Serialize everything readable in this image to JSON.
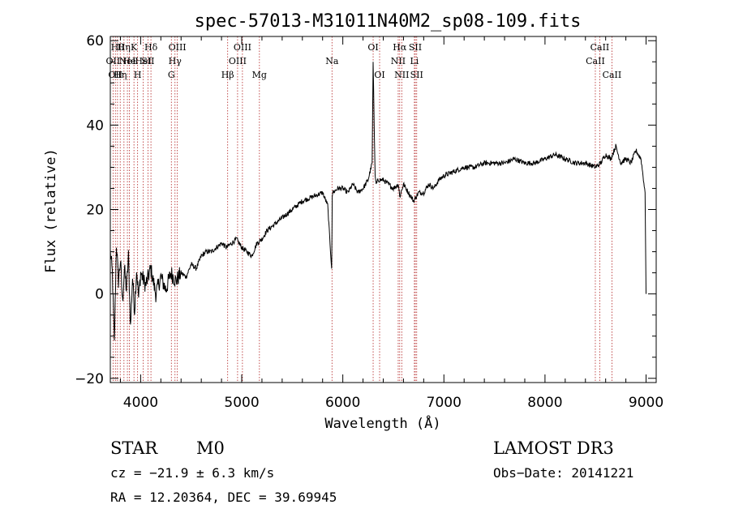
{
  "chart_data": {
    "type": "line",
    "title": "spec-57013-M31011N40M2_sp08-109.fits",
    "xlabel": "Wavelength (Å)",
    "ylabel": "Flux (relative)",
    "xlim": [
      3700,
      9100
    ],
    "ylim": [
      -21,
      61
    ],
    "xticks": [
      {
        "value": 4000,
        "label": "4000"
      },
      {
        "value": 5000,
        "label": "5000"
      },
      {
        "value": 6000,
        "label": "6000"
      },
      {
        "value": 7000,
        "label": "7000"
      },
      {
        "value": 8000,
        "label": "8000"
      },
      {
        "value": 9000,
        "label": "9000"
      }
    ],
    "yticks": [
      {
        "value": 60,
        "label": "60"
      },
      {
        "value": 40,
        "label": "40"
      },
      {
        "value": 20,
        "label": "20"
      },
      {
        "value": 0,
        "label": "0"
      },
      {
        "value": -20,
        "label": "−20"
      }
    ],
    "series": [
      {
        "name": "flux",
        "x": [
          3700,
          3720,
          3740,
          3760,
          3780,
          3800,
          3820,
          3840,
          3860,
          3880,
          3900,
          3920,
          3940,
          3960,
          3980,
          4000,
          4050,
          4100,
          4150,
          4200,
          4250,
          4300,
          4350,
          4400,
          4450,
          4500,
          4550,
          4600,
          4650,
          4700,
          4750,
          4800,
          4850,
          4900,
          4950,
          5000,
          5050,
          5100,
          5150,
          5200,
          5250,
          5300,
          5400,
          5500,
          5600,
          5700,
          5800,
          5850,
          5890,
          5895,
          5900,
          5950,
          6000,
          6050,
          6100,
          6150,
          6200,
          6250,
          6290,
          6300,
          6310,
          6320,
          6330,
          6350,
          6400,
          6450,
          6500,
          6550,
          6563,
          6600,
          6650,
          6700,
          6750,
          6800,
          6850,
          6900,
          6950,
          7000,
          7100,
          7200,
          7300,
          7400,
          7500,
          7600,
          7700,
          7800,
          7900,
          8000,
          8100,
          8200,
          8300,
          8400,
          8500,
          8550,
          8600,
          8650,
          8700,
          8750,
          8800,
          8850,
          8900,
          8950,
          8990,
          9000
        ],
        "y": [
          10,
          5,
          -12,
          12,
          3,
          8,
          -2,
          6,
          1,
          9,
          -8,
          4,
          -4,
          6,
          -1,
          5,
          2,
          6,
          0,
          4,
          1,
          5,
          3,
          5,
          4,
          7,
          6,
          9,
          10,
          10,
          11,
          12,
          11,
          12,
          13,
          11,
          10,
          9,
          12,
          13,
          15,
          16,
          18,
          20,
          22,
          23,
          24,
          21,
          6,
          23,
          24,
          25,
          25,
          24,
          26,
          24,
          25,
          27,
          31,
          55,
          40,
          28,
          26,
          27,
          27,
          26,
          25,
          26,
          23,
          26,
          24,
          22,
          24,
          24,
          26,
          25,
          27,
          28,
          29,
          30,
          30,
          31,
          31,
          31,
          32,
          31,
          31,
          32,
          33,
          32,
          31,
          31,
          30,
          31,
          33,
          32,
          35,
          31,
          32,
          31,
          34,
          32,
          24,
          0
        ]
      }
    ],
    "lines": [
      {
        "wl": 3727,
        "label": "OII",
        "row": 2
      },
      {
        "wl": 3750,
        "label": "OII",
        "row": 3
      },
      {
        "wl": 3771,
        "label": "Hθ",
        "row": 1
      },
      {
        "wl": 3798,
        "label": "Hη",
        "row": 3
      },
      {
        "wl": 3835,
        "label": "Hη",
        "row": 1
      },
      {
        "wl": 3869,
        "label": "NeI",
        "row": 2
      },
      {
        "wl": 3889,
        "label": "He",
        "row": 2
      },
      {
        "wl": 3934,
        "label": "K",
        "row": 1
      },
      {
        "wl": 3970,
        "label": "H",
        "row": 3
      },
      {
        "wl": 4026,
        "label": "HeI",
        "row": 2
      },
      {
        "wl": 4072,
        "label": "SII",
        "row": 2
      },
      {
        "wl": 4102,
        "label": "Hδ",
        "row": 1
      },
      {
        "wl": 4304,
        "label": "G",
        "row": 3
      },
      {
        "wl": 4340,
        "label": "Hγ",
        "row": 2
      },
      {
        "wl": 4363,
        "label": "OIII",
        "row": 1
      },
      {
        "wl": 4861,
        "label": "Hβ",
        "row": 3
      },
      {
        "wl": 4959,
        "label": "OIII",
        "row": 2
      },
      {
        "wl": 5007,
        "label": "OIII",
        "row": 1
      },
      {
        "wl": 5175,
        "label": "Mg",
        "row": 3
      },
      {
        "wl": 5893,
        "label": "Na",
        "row": 2
      },
      {
        "wl": 6300,
        "label": "OI",
        "row": 1
      },
      {
        "wl": 6364,
        "label": "OI",
        "row": 3
      },
      {
        "wl": 6548,
        "label": "NII",
        "row": 2
      },
      {
        "wl": 6563,
        "label": "Hα",
        "row": 1
      },
      {
        "wl": 6583,
        "label": "NII",
        "row": 3
      },
      {
        "wl": 6708,
        "label": "Li",
        "row": 2
      },
      {
        "wl": 6717,
        "label": "SII",
        "row": 1
      },
      {
        "wl": 6731,
        "label": "SII",
        "row": 3
      },
      {
        "wl": 8498,
        "label": "CaII",
        "row": 2
      },
      {
        "wl": 8542,
        "label": "CaII",
        "row": 1
      },
      {
        "wl": 8662,
        "label": "CaII",
        "row": 3
      }
    ]
  },
  "info": {
    "class": "STAR",
    "subclass": "M0",
    "survey": "LAMOST DR3",
    "cz": "cz = −21.9 ± 6.3 km/s",
    "obs_date": "Obs−Date: 20141221",
    "coords": "RA =  12.20364, DEC =  39.69945"
  }
}
